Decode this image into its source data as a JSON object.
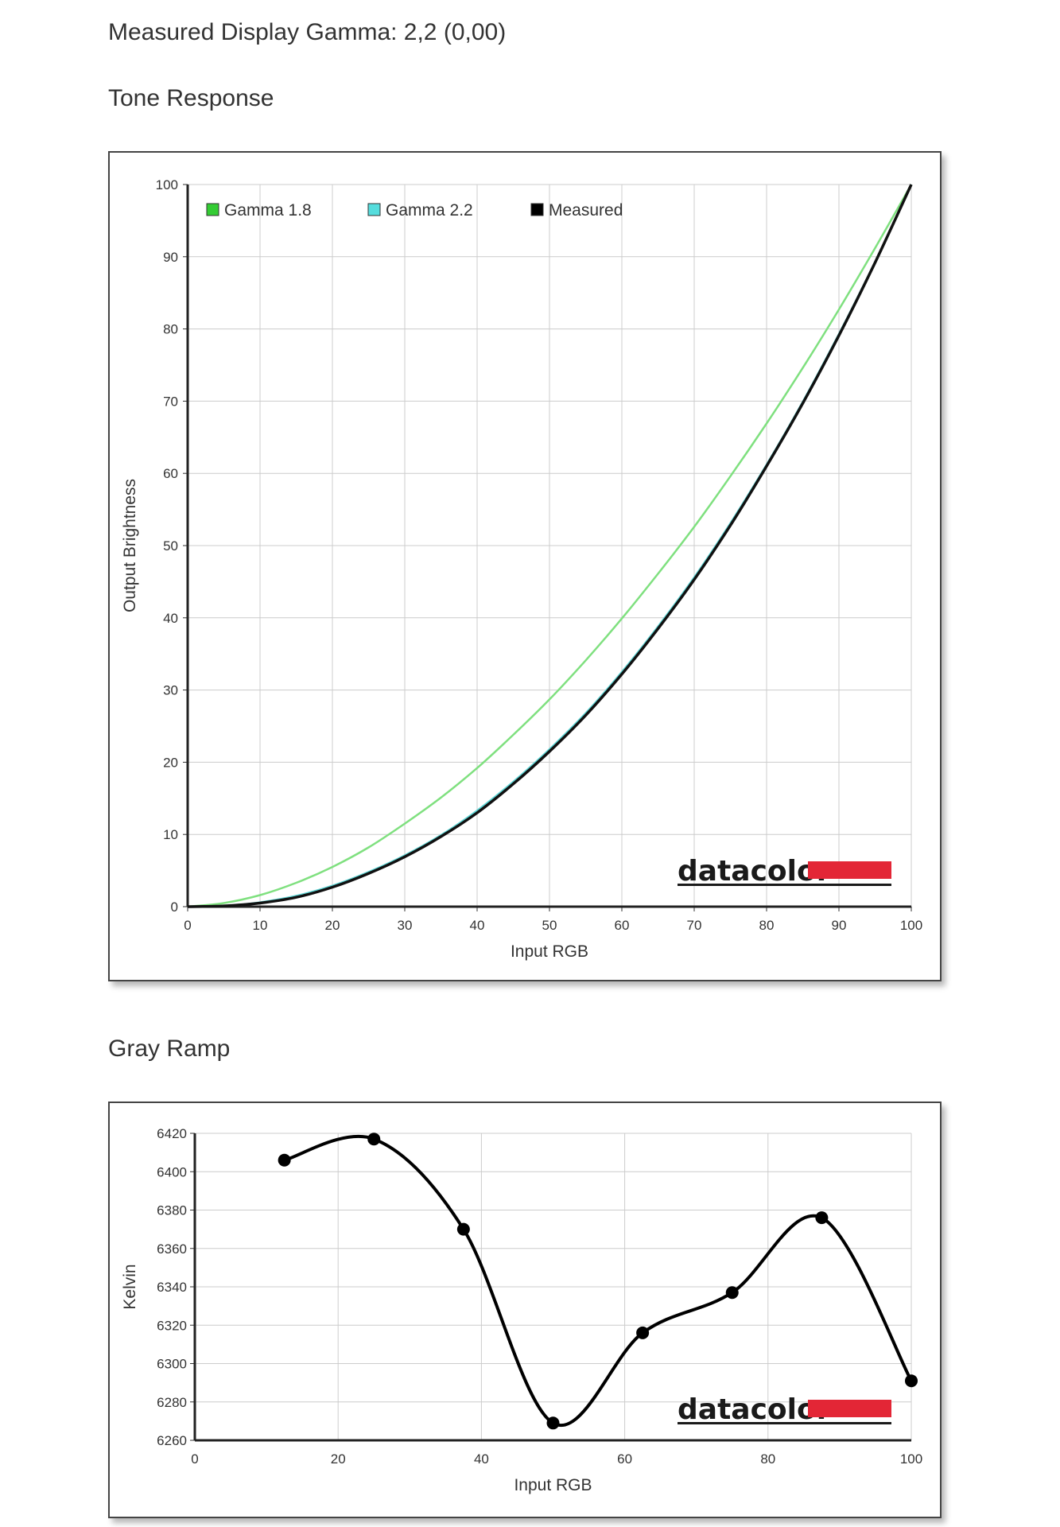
{
  "header": {
    "gamma_text": "Measured Display Gamma: 2,2 (0,00)"
  },
  "tone_response": {
    "title": "Tone Response"
  },
  "gray_ramp": {
    "title": "Gray Ramp"
  },
  "logo": {
    "text": "datacolor",
    "bar_color": "#e32636"
  },
  "chart_data": [
    {
      "type": "line",
      "xlabel": "Input RGB",
      "ylabel": "Output Brightness",
      "xlim": [
        0,
        100
      ],
      "ylim": [
        0,
        100
      ],
      "xticks": [
        0,
        10,
        20,
        30,
        40,
        50,
        60,
        70,
        80,
        90,
        100
      ],
      "yticks": [
        0,
        10,
        20,
        30,
        40,
        50,
        60,
        70,
        80,
        90,
        100
      ],
      "grid": true,
      "legend": "top-left",
      "series": [
        {
          "name": "Gamma 1.8",
          "color": "#7fe07f",
          "legend_color": "#33cc33",
          "x": [
            0,
            5,
            10,
            15,
            20,
            25,
            30,
            35,
            40,
            45,
            50,
            55,
            60,
            65,
            70,
            75,
            80,
            85,
            90,
            95,
            100
          ],
          "y": [
            0,
            0.5,
            1.6,
            3.3,
            5.5,
            8.2,
            11.5,
            15.1,
            19.2,
            23.8,
            28.7,
            34.1,
            39.9,
            46.1,
            52.6,
            59.6,
            66.9,
            74.6,
            82.7,
            91.2,
            100
          ]
        },
        {
          "name": "Gamma 2.2",
          "color": "#5fd6d6",
          "legend_color": "#55dddd",
          "x": [
            0,
            5,
            10,
            15,
            20,
            25,
            30,
            35,
            40,
            45,
            50,
            55,
            60,
            65,
            70,
            75,
            80,
            85,
            90,
            95,
            100
          ],
          "y": [
            0,
            0.1,
            0.6,
            1.5,
            2.9,
            4.8,
            7.1,
            9.9,
            13.3,
            17.3,
            21.8,
            26.8,
            32.5,
            38.8,
            45.6,
            53.1,
            61.2,
            69.9,
            79.3,
            89.3,
            100
          ]
        },
        {
          "name": "Measured",
          "color": "#111111",
          "legend_color": "#000000",
          "x": [
            0,
            5,
            10,
            15,
            20,
            25,
            30,
            35,
            40,
            45,
            50,
            55,
            60,
            65,
            70,
            75,
            80,
            85,
            90,
            95,
            100
          ],
          "y": [
            0,
            0.1,
            0.5,
            1.3,
            2.7,
            4.6,
            6.9,
            9.7,
            13.0,
            17.0,
            21.5,
            26.5,
            32.2,
            38.5,
            45.3,
            52.8,
            61.0,
            69.7,
            79.1,
            89.2,
            100
          ]
        }
      ]
    },
    {
      "type": "line",
      "xlabel": "Input RGB",
      "ylabel": "Kelvin",
      "xlim": [
        0,
        100
      ],
      "ylim": [
        6260,
        6420
      ],
      "xticks": [
        0,
        20,
        40,
        60,
        80,
        100
      ],
      "yticks": [
        6260,
        6280,
        6300,
        6320,
        6340,
        6360,
        6380,
        6400,
        6420
      ],
      "grid": true,
      "series": [
        {
          "color": "#000000",
          "x": [
            12.5,
            25,
            37.5,
            50,
            62.5,
            75,
            87.5,
            100
          ],
          "y": [
            6406,
            6417,
            6370,
            6269,
            6316,
            6337,
            6376,
            6291
          ]
        }
      ]
    }
  ]
}
